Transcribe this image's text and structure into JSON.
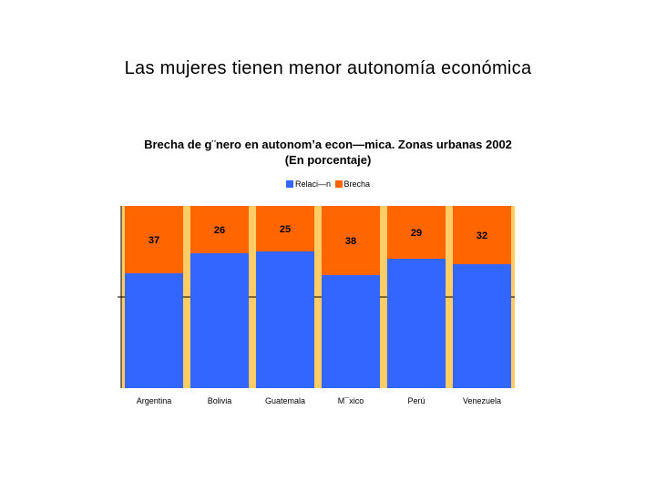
{
  "slide": {
    "title": "Las mujeres tienen menor autonomía económica"
  },
  "chart_data": {
    "type": "bar",
    "stacked": true,
    "title": "Brecha de g¨nero en autonom’a econ—mica. Zonas urbanas 2002",
    "subtitle": "(En porcentaje)",
    "categories": [
      "Argentina",
      "Bolivia",
      "Guatemala",
      "M¯xico",
      "Perú",
      "Venezuela"
    ],
    "series": [
      {
        "name": "Relaci—n",
        "values": [
          63,
          74,
          75,
          62,
          71,
          68
        ],
        "color": "#3366ff"
      },
      {
        "name": "Brecha",
        "values": [
          37,
          26,
          25,
          38,
          29,
          32
        ],
        "color": "#ff6600"
      }
    ],
    "ylim": [
      0,
      100
    ],
    "legend": "top-center",
    "grid": false,
    "plot_background": "#ffcc66"
  }
}
